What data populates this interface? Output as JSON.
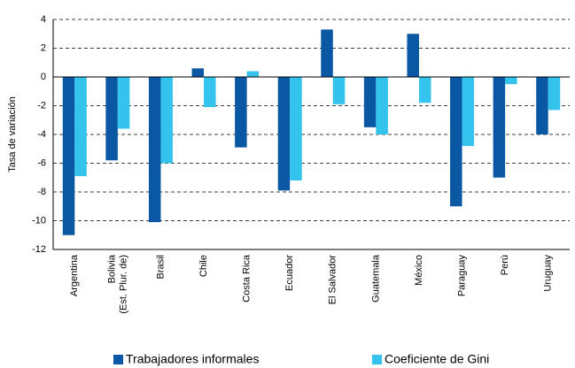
{
  "chart_data": {
    "type": "bar",
    "y_label": "Tasa de variación",
    "categories": [
      "Argentina",
      "Bolivia\n(Est. Plur. de)",
      "Brasil",
      "Chile",
      "Costa Rica",
      "Ecuador",
      "El Salvador",
      "Guatemala",
      "México",
      "Paraguay",
      "Perú",
      "Uruguay"
    ],
    "series": [
      {
        "name": "Trabajadores informales",
        "color": "#0a58a3",
        "values": [
          -11.0,
          -5.8,
          -10.1,
          0.6,
          -4.9,
          -7.9,
          3.3,
          -3.5,
          3.0,
          -9.0,
          -7.0,
          -4.0
        ]
      },
      {
        "name": "Coeficiente de Gini",
        "color": "#33c3ec",
        "values": [
          -6.9,
          -3.6,
          -6.0,
          -2.1,
          0.4,
          -7.2,
          -1.9,
          -4.0,
          -1.8,
          -4.8,
          -0.5,
          -2.3
        ]
      }
    ],
    "ylim": [
      -12,
      4
    ],
    "yticks": [
      -12,
      -10,
      -8,
      -6,
      -4,
      -2,
      0,
      2,
      4
    ],
    "grid": true
  }
}
